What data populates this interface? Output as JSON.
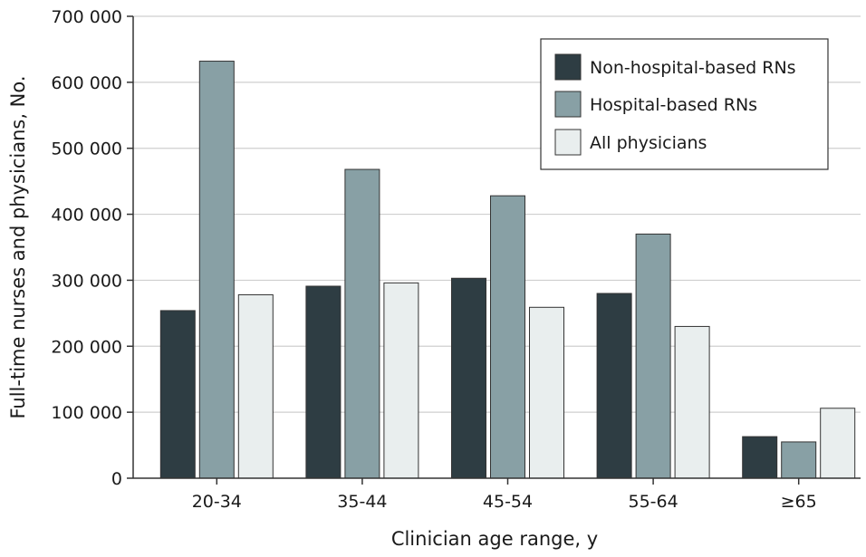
{
  "chart_data": {
    "type": "bar",
    "title": "",
    "xlabel": "Clinician age range, y",
    "ylabel": "Full-time nurses and physicians, No.",
    "categories": [
      "20-34",
      "35-44",
      "45-54",
      "55-64",
      "≥65"
    ],
    "ylim": [
      0,
      700000
    ],
    "yticks": [
      0,
      100000,
      200000,
      300000,
      400000,
      500000,
      600000,
      700000
    ],
    "ytick_labels": [
      "0",
      "100 000",
      "200 000",
      "300 000",
      "400 000",
      "500 000",
      "600 000",
      "700 000"
    ],
    "grid": true,
    "legend_position": "top-right",
    "series": [
      {
        "name": "Non-hospital-based RNs",
        "color": "#2e3d43",
        "values": [
          254000,
          291000,
          303000,
          280000,
          63000
        ]
      },
      {
        "name": "Hospital-based RNs",
        "color": "#88a0a5",
        "values": [
          632000,
          468000,
          428000,
          370000,
          55000
        ]
      },
      {
        "name": "All physicians",
        "color": "#e9eeee",
        "values": [
          278000,
          296000,
          259000,
          230000,
          106000
        ]
      }
    ]
  }
}
